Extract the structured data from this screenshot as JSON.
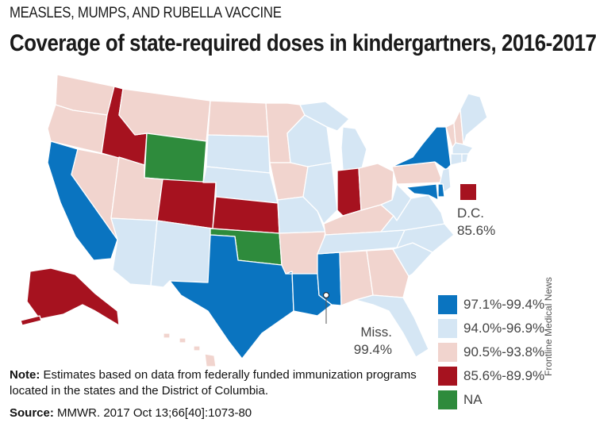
{
  "header": {
    "kicker": "MEASLES, MUMPS, AND RUBELLA VACCINE",
    "title": "Coverage of state-required doses in kindergartners, 2016-2017"
  },
  "colors": {
    "c97": "#0a74c0",
    "c94": "#d5e6f4",
    "c90": "#f1d4ce",
    "c85": "#a6121f",
    "na": "#2e8b3c",
    "border": "#ffffff"
  },
  "legend": [
    {
      "key": "c97",
      "label": "97.1%-99.4%"
    },
    {
      "key": "c94",
      "label": "94.0%-96.9%"
    },
    {
      "key": "c90",
      "label": "90.5%-93.8%"
    },
    {
      "key": "c85",
      "label": "85.6%-89.9%"
    },
    {
      "key": "na",
      "label": "NA"
    }
  ],
  "callouts": {
    "dc_name": "D.C.",
    "dc_value": "85.6%",
    "miss_name": "Miss.",
    "miss_value": "99.4%"
  },
  "states": {
    "WA": "c90",
    "OR": "c90",
    "CA": "c97",
    "NV": "c90",
    "ID": "c85",
    "MT": "c90",
    "WY": "na",
    "UT": "c90",
    "AZ": "c94",
    "CO": "c85",
    "NM": "c94",
    "ND": "c90",
    "SD": "c94",
    "NE": "c94",
    "KS": "c85",
    "OK": "na",
    "TX": "c97",
    "MN": "c90",
    "IA": "c90",
    "MO": "c94",
    "AR": "c90",
    "LA": "c97",
    "WI": "c94",
    "IL": "c94",
    "MS": "c97",
    "MI": "c94",
    "IN": "c85",
    "KY": "c90",
    "TN": "c94",
    "AL": "c90",
    "OH": "c90",
    "WV": "c94",
    "GA": "c90",
    "FL": "c94",
    "SC": "c94",
    "NC": "c94",
    "VA": "c94",
    "PA": "c90",
    "NY": "c97",
    "ME": "c94",
    "VT": "c90",
    "NH": "c90",
    "MA": "c94",
    "CT": "c94",
    "RI": "c94",
    "NJ": "c94",
    "DE": "c97",
    "MD": "c97",
    "DC": "c85",
    "AK": "c85",
    "HI": "c90"
  },
  "note": {
    "label": "Note:",
    "text": " Estimates based on data from federally funded immunization programs located in the states and the District of Columbia."
  },
  "source": {
    "label": "Source:",
    "text": " MMWR. 2017 Oct 13;66[40]:1073-80"
  },
  "credit": "Frontline Medical News"
}
